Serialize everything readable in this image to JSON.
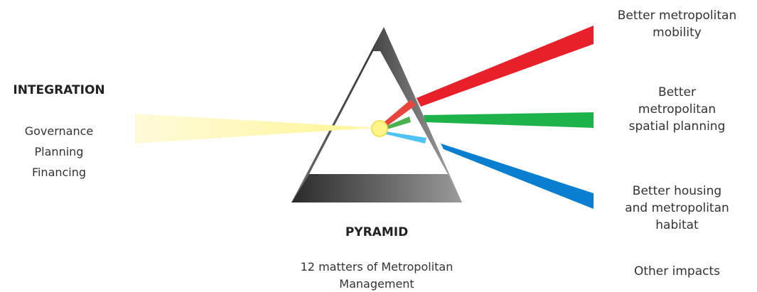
{
  "input": {
    "title": "INTEGRATION",
    "items": [
      "Governance",
      "Planning",
      "Financing"
    ]
  },
  "center": {
    "title": "PYRAMID",
    "lines": [
      "12 matters of Metropolitan",
      "Management"
    ]
  },
  "outputs": [
    {
      "lines": [
        "Better metropolitan",
        "mobility"
      ]
    },
    {
      "lines": [
        "Better",
        "metropolitan",
        "spatial planning"
      ]
    },
    {
      "lines": [
        "Better housing",
        "and metropolitan",
        "habitat"
      ]
    },
    {
      "lines": [
        "Other impacts"
      ]
    }
  ]
}
